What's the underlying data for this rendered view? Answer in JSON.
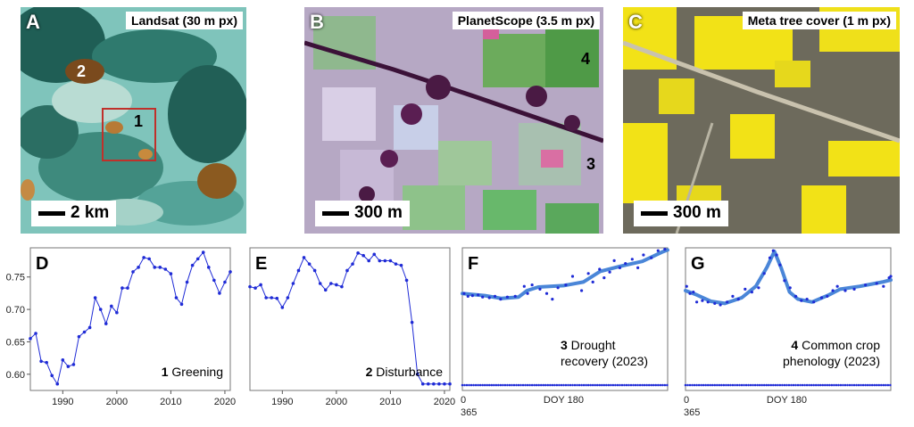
{
  "maps": [
    {
      "letter": "A",
      "title": "Landsat (30 m px)",
      "scale": "2 km",
      "markers": [
        {
          "n": "1",
          "color": "#000000"
        },
        {
          "n": "2",
          "color": "#ffffff"
        }
      ]
    },
    {
      "letter": "B",
      "title": "PlanetScope (3.5 m px)",
      "scale": "300 m",
      "markers": [
        {
          "n": "3",
          "color": "#000000"
        },
        {
          "n": "4",
          "color": "#000000"
        }
      ]
    },
    {
      "letter": "C",
      "title": "Meta tree cover (1 m px)",
      "scale": "300 m",
      "markers": []
    }
  ],
  "colors": {
    "series": "#1f2bd6",
    "fit": "#4a86d8"
  },
  "chart_data": [
    {
      "type": "line",
      "letter": "D",
      "annotation": {
        "number": "1",
        "text": "Greening"
      },
      "xlim": [
        1984,
        2021
      ],
      "ylim": [
        0.575,
        0.795
      ],
      "xticks": [
        1990,
        2000,
        2010,
        2020
      ],
      "yticks": [
        "0.60",
        "0.65",
        "0.70",
        "0.75"
      ],
      "x": [
        1984,
        1985,
        1986,
        1987,
        1988,
        1989,
        1990,
        1991,
        1992,
        1993,
        1994,
        1995,
        1996,
        1997,
        1998,
        1999,
        2000,
        2001,
        2002,
        2003,
        2004,
        2005,
        2006,
        2007,
        2008,
        2009,
        2010,
        2011,
        2012,
        2013,
        2014,
        2015,
        2016,
        2017,
        2018,
        2019,
        2020,
        2021
      ],
      "y": [
        0.655,
        0.663,
        0.62,
        0.618,
        0.598,
        0.585,
        0.622,
        0.612,
        0.615,
        0.658,
        0.665,
        0.672,
        0.718,
        0.7,
        0.678,
        0.705,
        0.695,
        0.733,
        0.733,
        0.758,
        0.765,
        0.78,
        0.778,
        0.765,
        0.765,
        0.762,
        0.755,
        0.718,
        0.708,
        0.742,
        0.768,
        0.778,
        0.788,
        0.765,
        0.745,
        0.725,
        0.742,
        0.758
      ]
    },
    {
      "type": "line",
      "letter": "E",
      "annotation": {
        "number": "2",
        "text": "Disturbance"
      },
      "xlim": [
        1984,
        2021
      ],
      "ylim": [
        0.575,
        0.795
      ],
      "xticks": [
        1990,
        2000,
        2010,
        2020
      ],
      "x": [
        1984,
        1985,
        1986,
        1987,
        1988,
        1989,
        1990,
        1991,
        1992,
        1993,
        1994,
        1995,
        1996,
        1997,
        1998,
        1999,
        2000,
        2001,
        2002,
        2003,
        2004,
        2005,
        2006,
        2007,
        2008,
        2009,
        2010,
        2011,
        2012,
        2013,
        2014,
        2015,
        2016,
        2017,
        2018,
        2019,
        2020,
        2021
      ],
      "y": [
        0.735,
        0.733,
        0.738,
        0.718,
        0.718,
        0.717,
        0.703,
        0.718,
        0.74,
        0.76,
        0.78,
        0.77,
        0.76,
        0.74,
        0.73,
        0.74,
        0.738,
        0.735,
        0.76,
        0.77,
        0.787,
        0.783,
        0.775,
        0.785,
        0.775,
        0.775,
        0.775,
        0.77,
        0.768,
        0.745,
        0.68,
        0.6,
        0.585,
        0.585,
        0.585,
        0.585,
        0.585,
        0.585
      ]
    },
    {
      "type": "scatter",
      "letter": "F",
      "annotation": {
        "number": "3",
        "line1": "Drought",
        "line2": "recovery (2023)"
      },
      "xlim": [
        0,
        365
      ],
      "ylim": [
        0,
        1
      ],
      "xticks": [
        "0",
        "DOY 180",
        "365"
      ],
      "fit": [
        [
          0,
          0.68
        ],
        [
          40,
          0.665
        ],
        [
          70,
          0.645
        ],
        [
          100,
          0.655
        ],
        [
          115,
          0.7
        ],
        [
          135,
          0.725
        ],
        [
          180,
          0.735
        ],
        [
          215,
          0.76
        ],
        [
          245,
          0.835
        ],
        [
          280,
          0.87
        ],
        [
          320,
          0.905
        ],
        [
          355,
          0.97
        ],
        [
          365,
          0.985
        ]
      ],
      "points": [
        [
          3,
          0.68
        ],
        [
          10,
          0.66
        ],
        [
          18,
          0.665
        ],
        [
          28,
          0.67
        ],
        [
          36,
          0.655
        ],
        [
          48,
          0.65
        ],
        [
          58,
          0.66
        ],
        [
          68,
          0.64
        ],
        [
          80,
          0.655
        ],
        [
          94,
          0.66
        ],
        [
          110,
          0.73
        ],
        [
          116,
          0.68
        ],
        [
          124,
          0.74
        ],
        [
          138,
          0.71
        ],
        [
          150,
          0.68
        ],
        [
          160,
          0.64
        ],
        [
          170,
          0.72
        ],
        [
          184,
          0.74
        ],
        [
          196,
          0.8
        ],
        [
          212,
          0.7
        ],
        [
          224,
          0.82
        ],
        [
          232,
          0.76
        ],
        [
          244,
          0.85
        ],
        [
          252,
          0.79
        ],
        [
          262,
          0.83
        ],
        [
          270,
          0.91
        ],
        [
          280,
          0.86
        ],
        [
          290,
          0.89
        ],
        [
          302,
          0.92
        ],
        [
          312,
          0.86
        ],
        [
          322,
          0.95
        ],
        [
          336,
          0.93
        ],
        [
          348,
          0.98
        ],
        [
          360,
          0.99
        ]
      ]
    },
    {
      "type": "scatter",
      "letter": "G",
      "annotation": {
        "number": "4",
        "line1": "Common crop",
        "line2": "phenology (2023)"
      },
      "xlim": [
        0,
        365
      ],
      "ylim": [
        0,
        1
      ],
      "xticks": [
        "0",
        "DOY 180",
        "365"
      ],
      "fit": [
        [
          0,
          0.7
        ],
        [
          20,
          0.67
        ],
        [
          45,
          0.625
        ],
        [
          70,
          0.61
        ],
        [
          100,
          0.65
        ],
        [
          125,
          0.73
        ],
        [
          145,
          0.865
        ],
        [
          158,
          0.975
        ],
        [
          170,
          0.86
        ],
        [
          185,
          0.69
        ],
        [
          200,
          0.64
        ],
        [
          225,
          0.62
        ],
        [
          255,
          0.67
        ],
        [
          275,
          0.71
        ],
        [
          310,
          0.73
        ],
        [
          350,
          0.76
        ],
        [
          365,
          0.775
        ]
      ],
      "points": [
        [
          2,
          0.73
        ],
        [
          8,
          0.68
        ],
        [
          14,
          0.69
        ],
        [
          20,
          0.62
        ],
        [
          30,
          0.63
        ],
        [
          40,
          0.62
        ],
        [
          52,
          0.61
        ],
        [
          62,
          0.6
        ],
        [
          74,
          0.62
        ],
        [
          84,
          0.66
        ],
        [
          94,
          0.64
        ],
        [
          106,
          0.71
        ],
        [
          118,
          0.69
        ],
        [
          130,
          0.72
        ],
        [
          140,
          0.82
        ],
        [
          150,
          0.93
        ],
        [
          156,
          0.98
        ],
        [
          162,
          0.95
        ],
        [
          168,
          0.88
        ],
        [
          176,
          0.77
        ],
        [
          186,
          0.72
        ],
        [
          196,
          0.66
        ],
        [
          206,
          0.63
        ],
        [
          216,
          0.64
        ],
        [
          228,
          0.62
        ],
        [
          242,
          0.65
        ],
        [
          252,
          0.66
        ],
        [
          262,
          0.7
        ],
        [
          270,
          0.73
        ],
        [
          284,
          0.7
        ],
        [
          300,
          0.71
        ],
        [
          320,
          0.74
        ],
        [
          340,
          0.75
        ],
        [
          352,
          0.73
        ],
        [
          362,
          0.79
        ],
        [
          365,
          0.8
        ]
      ]
    }
  ]
}
